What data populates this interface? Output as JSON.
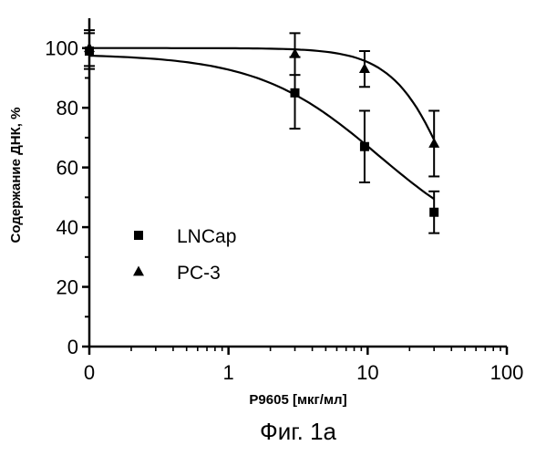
{
  "chart_data": {
    "type": "scatter",
    "xlabel": "P9605 [мкг/мл]",
    "ylabel": "Содержание ДНК, %",
    "x_scale": "log",
    "xlim": [
      0.1,
      100
    ],
    "ylim": [
      0,
      110
    ],
    "x_ticks": [
      {
        "value": 0.1,
        "label": "0"
      },
      {
        "value": 1,
        "label": "1"
      },
      {
        "value": 10,
        "label": "10"
      },
      {
        "value": 100,
        "label": "100"
      }
    ],
    "y_ticks": [
      0,
      20,
      40,
      60,
      80,
      100
    ],
    "grid": false,
    "legend": {
      "position": "middle-left"
    },
    "series": [
      {
        "name": "LNCap",
        "marker": "square",
        "points": [
          {
            "x": 0.1,
            "y": 99,
            "err": 6
          },
          {
            "x": 3,
            "y": 85,
            "err": 12
          },
          {
            "x": 9.5,
            "y": 67,
            "err": 12
          },
          {
            "x": 30,
            "y": 45,
            "err": 7
          }
        ],
        "fit": {
          "top": 98,
          "bottom": 30,
          "ec50": 12,
          "hill": 1
        }
      },
      {
        "name": "PC-3",
        "marker": "triangle",
        "points": [
          {
            "x": 0.1,
            "y": 100,
            "err": 6
          },
          {
            "x": 3,
            "y": 98,
            "err": 7
          },
          {
            "x": 9.5,
            "y": 93,
            "err": 6
          },
          {
            "x": 30,
            "y": 68,
            "err": 11
          }
        ],
        "fit": {
          "top": 100,
          "bottom": 0,
          "ec50": 45,
          "hill": 2
        }
      }
    ]
  },
  "caption": "Фиг. 1а"
}
